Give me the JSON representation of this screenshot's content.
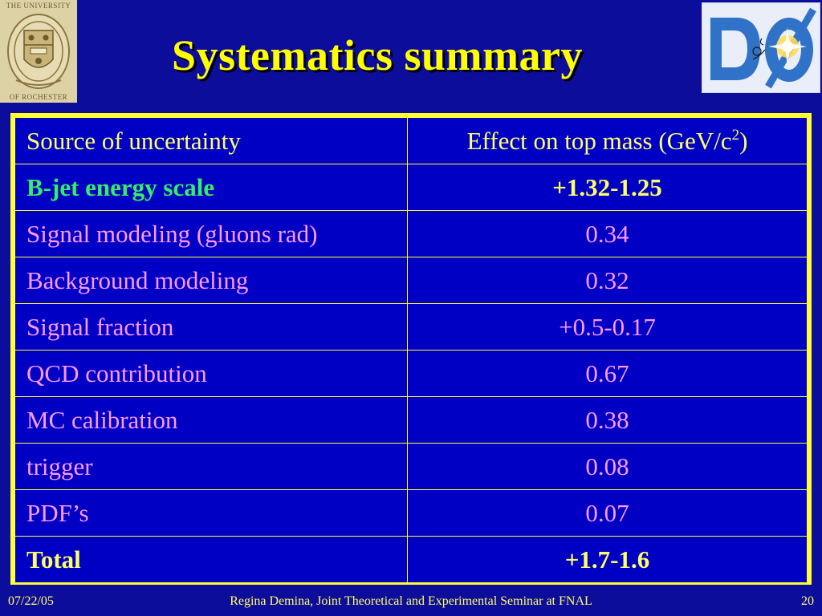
{
  "logos": {
    "left_top_text": "THE UNIVERSITY",
    "left_bottom_text": "OF ROCHESTER",
    "left_icon": "university-of-rochester-seal",
    "right_icon": "d0-experiment-logo"
  },
  "slide": {
    "title": "Systematics summary"
  },
  "table": {
    "header": {
      "source": "Source of uncertainty",
      "effect_prefix": "Effect on top mass (GeV/c",
      "effect_sup": "2",
      "effect_suffix": ")"
    },
    "rows": [
      {
        "source": "B-jet energy scale",
        "effect": "+1.32-1.25"
      },
      {
        "source": "Signal modeling (gluons rad)",
        "effect": "0.34"
      },
      {
        "source": "Background modeling",
        "effect": "0.32"
      },
      {
        "source": "Signal fraction",
        "effect": "+0.5-0.17"
      },
      {
        "source": "QCD contribution",
        "effect": "0.67"
      },
      {
        "source": "MC calibration",
        "effect": "0.38"
      },
      {
        "source": "trigger",
        "effect": "0.08"
      },
      {
        "source": "PDF’s",
        "effect": "0.07"
      },
      {
        "source": "Total",
        "effect": "+1.7-1.6"
      }
    ]
  },
  "footer": {
    "date": "07/22/05",
    "text": "Regina Demina, Joint Theoretical and Experimental Seminar at FNAL",
    "page": "20"
  },
  "colors": {
    "background": "#0d0d9c",
    "title": "#ffff00",
    "table_border": "#ffff33",
    "cell_background": "#0000c4",
    "highlight_text": "#ffff66",
    "bjet_text": "#33ee66",
    "body_text": "#ff99ff"
  }
}
